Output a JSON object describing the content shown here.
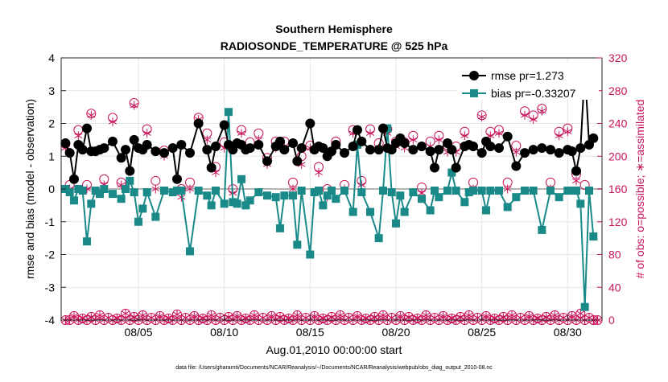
{
  "chart_data": {
    "type": "line",
    "title": "Southern Hemisphere",
    "subtitle": "RADIOSONDE_TEMPERATURE @ 525 hPa",
    "xlabel": "Aug.01,2010 00:00:00 start",
    "ylabel_left": "rmse and bias (model - observation)",
    "ylabel_right": "# of obs: o=possible; ∗=assimilated",
    "footnote": "data file: /Users/gharamti/Documents/NCAR/Reanalysis/~/Documents/NCAR/Reanalysis/webpub/obs_diag_output_2010-08.nc",
    "xlim": [
      0.5,
      32.0
    ],
    "xticks": [
      5,
      10,
      15,
      20,
      25,
      30
    ],
    "xtick_labels": [
      "08/05",
      "08/10",
      "08/15",
      "08/20",
      "08/25",
      "08/30"
    ],
    "ylim_left": [
      -4,
      4
    ],
    "yticks_left": [
      -4,
      -3,
      -2,
      -1,
      0,
      1,
      2,
      3,
      4
    ],
    "ylim_right": [
      0,
      320
    ],
    "yticks_right": [
      0,
      40,
      80,
      120,
      160,
      200,
      240,
      280,
      320
    ],
    "grid": true,
    "legend_position": "top-right",
    "colors": {
      "rmse": "#000000",
      "bias": "#1a8a88",
      "obs": "#c8145a",
      "zero_line": "#b4b4b4"
    },
    "series": [
      {
        "name": "rmse pr=1.273",
        "axis": "left",
        "x": [
          0.75,
          1.0,
          1.25,
          1.5,
          1.75,
          2.0,
          2.25,
          2.5,
          2.75,
          3.0,
          3.5,
          4.0,
          4.25,
          4.5,
          4.75,
          5.0,
          5.25,
          5.5,
          6.0,
          6.5,
          7.0,
          7.25,
          7.5,
          8.0,
          8.5,
          9.0,
          9.25,
          9.5,
          10.0,
          10.25,
          10.5,
          10.75,
          11.0,
          11.25,
          11.5,
          12.0,
          12.5,
          13.0,
          13.25,
          13.5,
          14.0,
          14.25,
          14.5,
          15.0,
          15.25,
          15.5,
          15.75,
          16.0,
          16.25,
          16.5,
          17.0,
          17.5,
          17.75,
          18.0,
          18.5,
          19.0,
          19.25,
          19.5,
          19.75,
          20.0,
          20.25,
          20.5,
          21.0,
          21.5,
          22.0,
          22.25,
          22.5,
          23.0,
          23.25,
          23.5,
          24.0,
          24.25,
          24.5,
          25.0,
          25.25,
          25.5,
          26.0,
          26.5,
          27.0,
          27.5,
          28.0,
          28.5,
          29.0,
          29.5,
          30.0,
          30.25,
          30.5,
          30.75,
          31.0,
          31.25,
          31.5
        ],
        "y": [
          1.4,
          1.1,
          0.3,
          1.35,
          1.2,
          1.85,
          1.15,
          1.15,
          1.2,
          1.25,
          1.45,
          0.95,
          1.2,
          0.55,
          1.5,
          1.25,
          1.2,
          1.35,
          1.15,
          1.1,
          1.25,
          0.3,
          1.35,
          1.1,
          2.0,
          1.2,
          0.65,
          1.3,
          1.95,
          1.35,
          1.2,
          1.4,
          1.35,
          1.2,
          1.25,
          1.35,
          0.85,
          1.3,
          1.45,
          1.2,
          1.4,
          0.85,
          1.25,
          2.0,
          1.2,
          1.3,
          1.25,
          1.0,
          1.15,
          1.35,
          1.1,
          1.3,
          1.8,
          1.45,
          1.2,
          1.2,
          1.85,
          1.25,
          1.2,
          1.4,
          1.55,
          1.4,
          1.2,
          1.3,
          1.15,
          0.65,
          1.2,
          1.4,
          1.2,
          0.65,
          1.3,
          1.35,
          1.3,
          1.1,
          1.45,
          1.3,
          1.25,
          1.6,
          0.7,
          1.1,
          1.2,
          1.25,
          1.2,
          1.1,
          1.2,
          1.15,
          0.55,
          1.25,
          3.65,
          1.35,
          1.55
        ]
      },
      {
        "name": "bias pr=-0.33207",
        "axis": "left",
        "x": [
          0.75,
          1.0,
          1.25,
          1.5,
          1.75,
          2.0,
          2.25,
          2.5,
          2.75,
          3.0,
          3.5,
          4.0,
          4.25,
          4.5,
          4.75,
          5.0,
          5.25,
          5.5,
          6.0,
          6.5,
          7.0,
          7.25,
          7.5,
          8.0,
          8.5,
          9.0,
          9.25,
          9.5,
          10.0,
          10.25,
          10.5,
          10.75,
          11.0,
          11.25,
          11.5,
          12.0,
          12.5,
          13.0,
          13.25,
          13.5,
          14.0,
          14.25,
          14.5,
          15.0,
          15.25,
          15.5,
          15.75,
          16.0,
          16.25,
          16.5,
          17.0,
          17.5,
          17.75,
          18.0,
          18.5,
          19.0,
          19.25,
          19.5,
          19.75,
          20.0,
          20.25,
          20.5,
          21.0,
          21.5,
          22.0,
          22.25,
          22.5,
          23.0,
          23.25,
          23.5,
          24.0,
          24.25,
          24.5,
          25.0,
          25.25,
          25.5,
          26.0,
          26.5,
          27.0,
          27.5,
          28.0,
          28.5,
          29.0,
          29.5,
          30.0,
          30.25,
          30.5,
          30.75,
          31.0,
          31.25,
          31.5
        ],
        "y": [
          0.0,
          -0.1,
          -0.35,
          0.0,
          -0.05,
          -1.6,
          -0.45,
          -0.05,
          -0.15,
          0.0,
          -0.15,
          -0.3,
          0.0,
          0.25,
          -0.1,
          -1.0,
          -0.6,
          -0.1,
          -0.85,
          -0.05,
          -0.1,
          -0.05,
          -0.05,
          -1.9,
          -0.05,
          -0.2,
          -0.5,
          -0.05,
          -0.45,
          2.35,
          -0.4,
          -0.45,
          0.3,
          -0.5,
          -0.35,
          -0.1,
          -0.2,
          -0.25,
          -1.2,
          -0.2,
          -0.2,
          -1.7,
          -0.05,
          -2.0,
          -0.1,
          -0.05,
          -0.5,
          -0.2,
          -0.05,
          -0.3,
          -0.05,
          -0.7,
          1.35,
          -0.1,
          -0.7,
          -1.5,
          -0.05,
          1.85,
          -0.1,
          -1.05,
          -0.2,
          -0.7,
          -0.1,
          -0.3,
          -0.65,
          -0.05,
          -0.25,
          -0.05,
          0.5,
          -0.05,
          -0.4,
          -0.1,
          -0.05,
          -0.05,
          -0.65,
          -0.05,
          -0.05,
          -0.55,
          -0.25,
          -0.05,
          -0.05,
          -1.25,
          -0.05,
          -0.25,
          -0.05,
          -0.05,
          -0.05,
          -0.45,
          -3.6,
          -0.05,
          -1.45
        ]
      },
      {
        "name": "",
        "marker": "o",
        "axis": "right",
        "x": [
          0.75,
          1.0,
          1.5,
          2.0,
          2.25,
          3.0,
          3.5,
          4.0,
          4.75,
          5.5,
          6.0,
          6.5,
          7.5,
          8.0,
          8.5,
          9.0,
          9.5,
          10.0,
          10.5,
          11.0,
          11.5,
          12.0,
          12.5,
          13.0,
          13.5,
          14.0,
          14.5,
          15.0,
          15.5,
          16.0,
          16.5,
          17.0,
          17.5,
          18.0,
          18.5,
          19.0,
          19.5,
          20.0,
          20.5,
          21.0,
          21.5,
          22.0,
          22.5,
          23.0,
          23.5,
          24.0,
          24.5,
          25.0,
          25.5,
          26.0,
          26.5,
          27.0,
          27.5,
          28.0,
          28.5,
          29.0,
          29.5,
          30.0,
          30.5,
          31.0,
          31.5
        ],
        "y": [
          215,
          165,
          232,
          165,
          252,
          172,
          247,
          168,
          265,
          233,
          170,
          207,
          160,
          168,
          247,
          228,
          187,
          217,
          160,
          232,
          217,
          228,
          198,
          218,
          218,
          168,
          200,
          213,
          187,
          160,
          218,
          165,
          232,
          170,
          233,
          216,
          233,
          218,
          217,
          225,
          162,
          218,
          225,
          213,
          212,
          230,
          168,
          250,
          230,
          232,
          168,
          213,
          255,
          250,
          258,
          168,
          230,
          234,
          178,
          165,
          0
        ]
      },
      {
        "name": "",
        "marker": "*",
        "axis": "right",
        "x": [
          0.75,
          1.0,
          1.5,
          2.0,
          2.25,
          3.0,
          3.5,
          4.0,
          4.75,
          5.5,
          6.0,
          6.5,
          7.5,
          8.0,
          8.5,
          9.0,
          9.5,
          10.0,
          10.5,
          11.0,
          11.5,
          12.0,
          12.5,
          13.0,
          13.5,
          14.0,
          14.5,
          15.0,
          15.5,
          16.0,
          16.5,
          17.0,
          17.5,
          18.0,
          18.5,
          19.0,
          19.5,
          20.0,
          20.5,
          21.0,
          21.5,
          22.0,
          22.5,
          23.0,
          23.5,
          24.0,
          24.5,
          25.0,
          25.5,
          26.0,
          26.5,
          27.0,
          27.5,
          28.0,
          28.5,
          29.0,
          29.5,
          30.0,
          30.5,
          31.0,
          31.5
        ],
        "y": [
          210,
          160,
          225,
          160,
          250,
          165,
          242,
          165,
          262,
          228,
          160,
          200,
          150,
          160,
          245,
          220,
          180,
          210,
          155,
          228,
          210,
          220,
          190,
          210,
          212,
          160,
          190,
          210,
          180,
          150,
          212,
          160,
          228,
          165,
          228,
          210,
          228,
          212,
          210,
          220,
          155,
          212,
          220,
          205,
          205,
          225,
          160,
          248,
          225,
          228,
          160,
          205,
          250,
          245,
          255,
          160,
          225,
          230,
          170,
          0,
          0
        ]
      },
      {
        "name": "",
        "marker": "o",
        "axis": "right",
        "x": [
          0.75,
          1.0,
          1.25,
          1.5,
          1.75,
          2.0,
          2.25,
          2.5,
          2.75,
          3.0,
          3.25,
          3.5,
          3.75,
          4.0,
          4.25,
          4.5,
          4.75,
          5.0,
          5.25,
          5.5,
          5.75,
          6.0,
          6.25,
          6.5,
          6.75,
          7.0,
          7.25,
          7.5,
          7.75,
          8.0,
          8.25,
          8.5,
          8.75,
          9.0,
          9.25,
          9.5,
          9.75,
          10.0,
          10.25,
          10.5,
          10.75,
          11.0,
          11.25,
          11.5,
          11.75,
          12.0,
          12.25,
          12.5,
          12.75,
          13.0,
          13.25,
          13.5,
          13.75,
          14.0,
          14.25,
          14.5,
          14.75,
          15.0,
          15.25,
          15.5,
          15.75,
          16.0,
          16.25,
          16.5,
          16.75,
          17.0,
          17.25,
          17.5,
          17.75,
          18.0,
          18.25,
          18.5,
          18.75,
          19.0,
          19.25,
          19.5,
          19.75,
          20.0,
          20.25,
          20.5,
          20.75,
          21.0,
          21.25,
          21.5,
          21.75,
          22.0,
          22.25,
          22.5,
          22.75,
          23.0,
          23.25,
          23.5,
          23.75,
          24.0,
          24.25,
          24.5,
          24.75,
          25.0,
          25.25,
          25.5,
          25.75,
          26.0,
          26.25,
          26.5,
          26.75,
          27.0,
          27.25,
          27.5,
          27.75,
          28.0,
          28.25,
          28.5,
          28.75,
          29.0,
          29.25,
          29.5,
          29.75,
          30.0,
          30.25,
          30.5,
          30.75,
          31.0,
          31.25,
          31.5,
          31.75
        ],
        "y": [
          0,
          0,
          5,
          0,
          2,
          0,
          4,
          0,
          6,
          0,
          3,
          0,
          2,
          0,
          8,
          0,
          4,
          0,
          6,
          0,
          3,
          0,
          5,
          0,
          2,
          0,
          7,
          0,
          3,
          0,
          5,
          0,
          2,
          0,
          6,
          0,
          3,
          0,
          4,
          0,
          5,
          0,
          2,
          0,
          6,
          0,
          3,
          0,
          5,
          0,
          4,
          0,
          2,
          0,
          6,
          0,
          3,
          0,
          5,
          0,
          2,
          0,
          4,
          0,
          6,
          0,
          3,
          0,
          5,
          0,
          2,
          0,
          4,
          0,
          6,
          0,
          3,
          0,
          5,
          0,
          4,
          0,
          2,
          0,
          6,
          0,
          3,
          0,
          5,
          0,
          2,
          0,
          4,
          0,
          6,
          0,
          3,
          0,
          5,
          0,
          2,
          0,
          4,
          0,
          6,
          0,
          3,
          0,
          5,
          0,
          2,
          0,
          4,
          0,
          6,
          0,
          3,
          0,
          5,
          0,
          8,
          0,
          3,
          0,
          0
        ]
      }
    ]
  }
}
